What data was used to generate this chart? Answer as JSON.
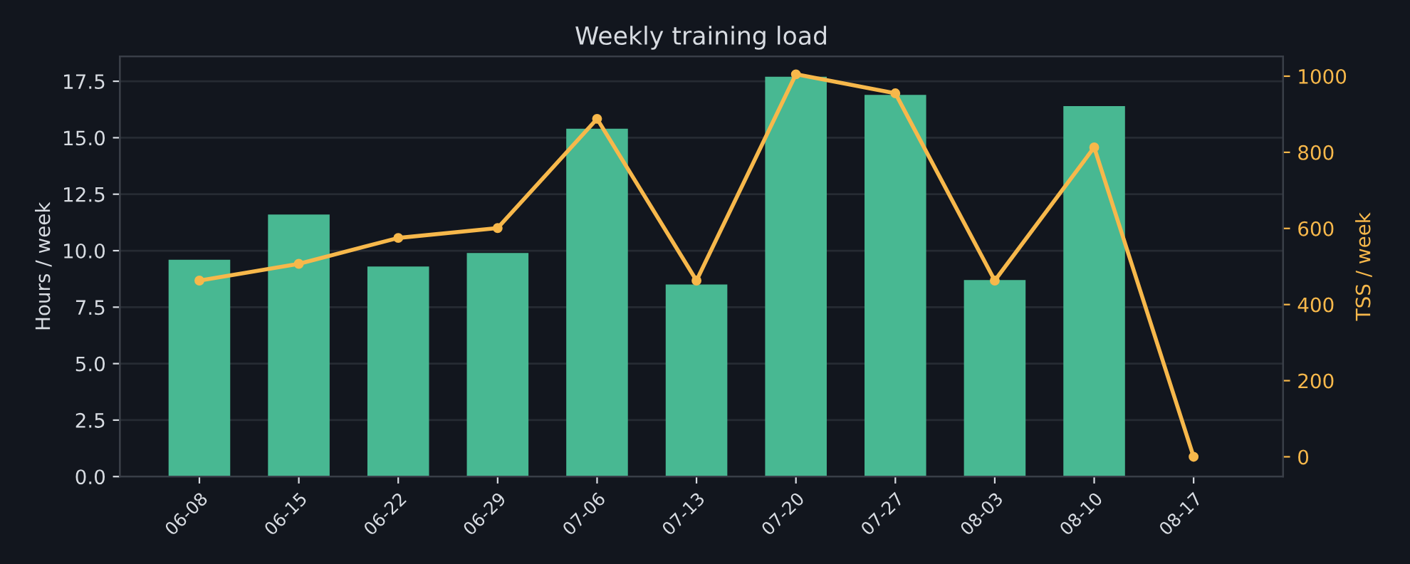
{
  "chart_data": {
    "type": "bar",
    "title": "Weekly training load",
    "ylabel": "Hours / week",
    "y2label": "TSS / week",
    "categories": [
      "06-08",
      "06-15",
      "06-22",
      "06-29",
      "07-06",
      "07-13",
      "07-20",
      "07-27",
      "08-03",
      "08-10",
      "08-17"
    ],
    "series": [
      {
        "color": "#48b892",
        "values": [
          9.6,
          11.6,
          9.3,
          9.9,
          15.4,
          8.5,
          17.7,
          16.9,
          8.7,
          16.4,
          0
        ]
      },
      {
        "type": "line",
        "axis": "y2",
        "color": "#f7b84b",
        "marker": "circle",
        "values": [
          463,
          507,
          575,
          601,
          888,
          463,
          1005,
          955,
          463,
          813,
          0
        ]
      }
    ],
    "ylim": [
      0,
      18.6
    ],
    "yticks": [
      {
        "value": 0,
        "label": "0.0"
      },
      {
        "value": 2.5,
        "label": "2.5"
      },
      {
        "value": 5,
        "label": "5.0"
      },
      {
        "value": 7.5,
        "label": "7.5"
      },
      {
        "value": 10,
        "label": "10.0"
      },
      {
        "value": 12.5,
        "label": "12.5"
      },
      {
        "value": 15,
        "label": "15.0"
      },
      {
        "value": 17.5,
        "label": "17.5"
      }
    ],
    "y2lim": [
      -52,
      1052
    ],
    "y2ticks": [
      0,
      200,
      400,
      600,
      800,
      1000
    ],
    "grid": "y"
  }
}
